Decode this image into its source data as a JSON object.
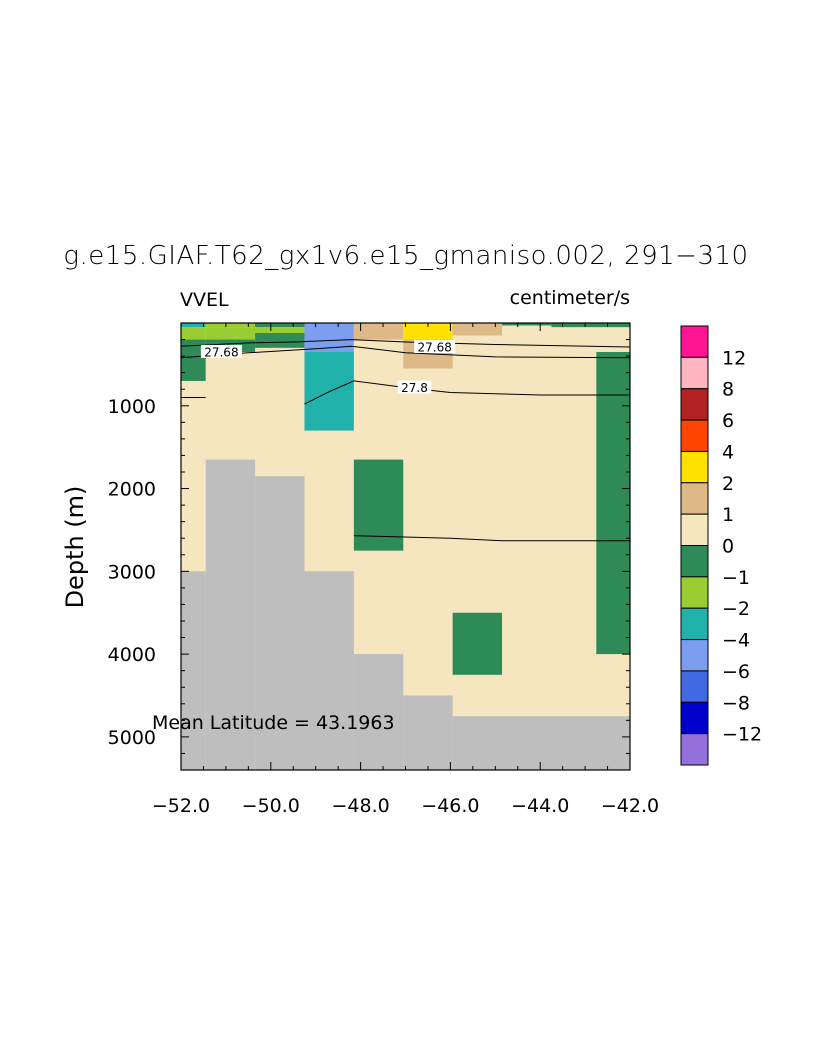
{
  "chart_data": {
    "type": "heatmap",
    "title": "g.e15.GIAF.T62_gx1v6.e15_gmaniso.002, 291−310",
    "left_label": "VVEL",
    "right_label": "centimeter/s",
    "ylabel": "Depth (m)",
    "annotation": "Mean Latitude = 43.1963",
    "xlim": [
      -52,
      -42
    ],
    "ylim": [
      5400,
      0
    ],
    "x_ticks": [
      "−52.0",
      "−50.0",
      "−48.0",
      "−46.0",
      "−44.0",
      "−42.0"
    ],
    "y_ticks": [
      "1000",
      "2000",
      "3000",
      "4000",
      "5000"
    ],
    "colorbar": {
      "levels": [
        "12",
        "8",
        "6",
        "4",
        "2",
        "1",
        "0",
        "−1",
        "−2",
        "−4",
        "−6",
        "−8",
        "−12"
      ],
      "colors": [
        "#ff1493",
        "#ffb6c1",
        "#b22222",
        "#ff4500",
        "#ffe000",
        "#deb887",
        "#f5e6c0",
        "#2e8b57",
        "#9acd32",
        "#20b2aa",
        "#7b9ef0",
        "#4169e1",
        "#0000cd",
        "#9370db"
      ]
    },
    "land_color": "#bebebe",
    "background_color": "#f5e6c0",
    "cells": [
      {
        "x": [
          -52.0,
          -51.45
        ],
        "y": [
          0,
          50
        ],
        "color": "#20b2aa"
      },
      {
        "x": [
          -51.45,
          -50.35
        ],
        "y": [
          0,
          50
        ],
        "color": "#9acd32"
      },
      {
        "x": [
          -50.35,
          -49.25
        ],
        "y": [
          0,
          50
        ],
        "color": "#2e8b57"
      },
      {
        "x": [
          -52.0,
          -51.45
        ],
        "y": [
          50,
          200
        ],
        "color": "#9acd32"
      },
      {
        "x": [
          -51.45,
          -50.35
        ],
        "y": [
          50,
          200
        ],
        "color": "#9acd32"
      },
      {
        "x": [
          -50.35,
          -49.25
        ],
        "y": [
          50,
          120
        ],
        "color": "#9acd32"
      },
      {
        "x": [
          -50.35,
          -49.25
        ],
        "y": [
          120,
          300
        ],
        "color": "#2e8b57"
      },
      {
        "x": [
          -52.0,
          -51.45
        ],
        "y": [
          200,
          700
        ],
        "color": "#2e8b57"
      },
      {
        "x": [
          -51.45,
          -50.35
        ],
        "y": [
          200,
          350
        ],
        "color": "#2e8b57"
      },
      {
        "x": [
          -49.25,
          -48.15
        ],
        "y": [
          0,
          350
        ],
        "color": "#7b9ef0"
      },
      {
        "x": [
          -49.25,
          -48.15
        ],
        "y": [
          350,
          1300
        ],
        "color": "#20b2aa"
      },
      {
        "x": [
          -48.15,
          -47.05
        ],
        "y": [
          0,
          200
        ],
        "color": "#deb887"
      },
      {
        "x": [
          -47.05,
          -45.95
        ],
        "y": [
          0,
          200
        ],
        "color": "#ffe000"
      },
      {
        "x": [
          -47.05,
          -45.95
        ],
        "y": [
          200,
          550
        ],
        "color": "#deb887"
      },
      {
        "x": [
          -45.95,
          -44.85
        ],
        "y": [
          0,
          150
        ],
        "color": "#deb887"
      },
      {
        "x": [
          -44.85,
          -43.75
        ],
        "y": [
          0,
          30
        ],
        "color": "#2e8b57"
      },
      {
        "x": [
          -43.75,
          -42.0
        ],
        "y": [
          0,
          50
        ],
        "color": "#2e8b57"
      },
      {
        "x": [
          -42.75,
          -42.0
        ],
        "y": [
          350,
          4000
        ],
        "color": "#2e8b57"
      },
      {
        "x": [
          -48.15,
          -47.05
        ],
        "y": [
          1650,
          2750
        ],
        "color": "#2e8b57"
      },
      {
        "x": [
          -45.95,
          -44.85
        ],
        "y": [
          3500,
          4250
        ],
        "color": "#2e8b57"
      }
    ],
    "land": [
      {
        "x": [
          -52.0,
          -51.45
        ],
        "y": [
          3000,
          5400
        ]
      },
      {
        "x": [
          -51.45,
          -50.35
        ],
        "y": [
          1650,
          5400
        ]
      },
      {
        "x": [
          -50.35,
          -49.25
        ],
        "y": [
          1850,
          5400
        ]
      },
      {
        "x": [
          -49.25,
          -48.15
        ],
        "y": [
          3000,
          5400
        ]
      },
      {
        "x": [
          -48.15,
          -47.05
        ],
        "y": [
          4000,
          5400
        ]
      },
      {
        "x": [
          -47.05,
          -45.95
        ],
        "y": [
          4500,
          5400
        ]
      },
      {
        "x": [
          -45.95,
          -42.0
        ],
        "y": [
          4750,
          5400
        ]
      }
    ],
    "contours": [
      {
        "label": "27.68",
        "points": [
          [
            -52.0,
            280
          ],
          [
            -50.5,
            240
          ],
          [
            -49.5,
            230
          ],
          [
            -48.2,
            200
          ],
          [
            -47.0,
            230
          ],
          [
            -45.0,
            260
          ],
          [
            -42.0,
            290
          ]
        ]
      },
      {
        "label": "27.68",
        "points": [
          [
            -52.0,
            420
          ],
          [
            -50.5,
            360
          ],
          [
            -49.0,
            310
          ],
          [
            -48.2,
            280
          ],
          [
            -47.0,
            360
          ],
          [
            -45.0,
            410
          ],
          [
            -42.0,
            420
          ]
        ]
      },
      {
        "label": "27.8",
        "points": [
          [
            -49.25,
            980
          ],
          [
            -48.7,
            830
          ],
          [
            -48.15,
            700
          ],
          [
            -47.0,
            780
          ],
          [
            -46.0,
            840
          ],
          [
            -44.0,
            870
          ],
          [
            -42.0,
            870
          ]
        ]
      },
      {
        "label": "",
        "points": [
          [
            -52.0,
            900
          ],
          [
            -51.45,
            900
          ]
        ]
      },
      {
        "label": "",
        "points": [
          [
            -48.15,
            2570
          ],
          [
            -46.0,
            2600
          ],
          [
            -44.85,
            2630
          ],
          [
            -42.0,
            2630
          ]
        ]
      }
    ],
    "contour_labels": [
      {
        "text": "27.68",
        "x": -51.1,
        "y": 350
      },
      {
        "text": "27.68",
        "x": -46.35,
        "y": 290
      },
      {
        "text": "27.8",
        "x": -46.8,
        "y": 780
      }
    ]
  }
}
